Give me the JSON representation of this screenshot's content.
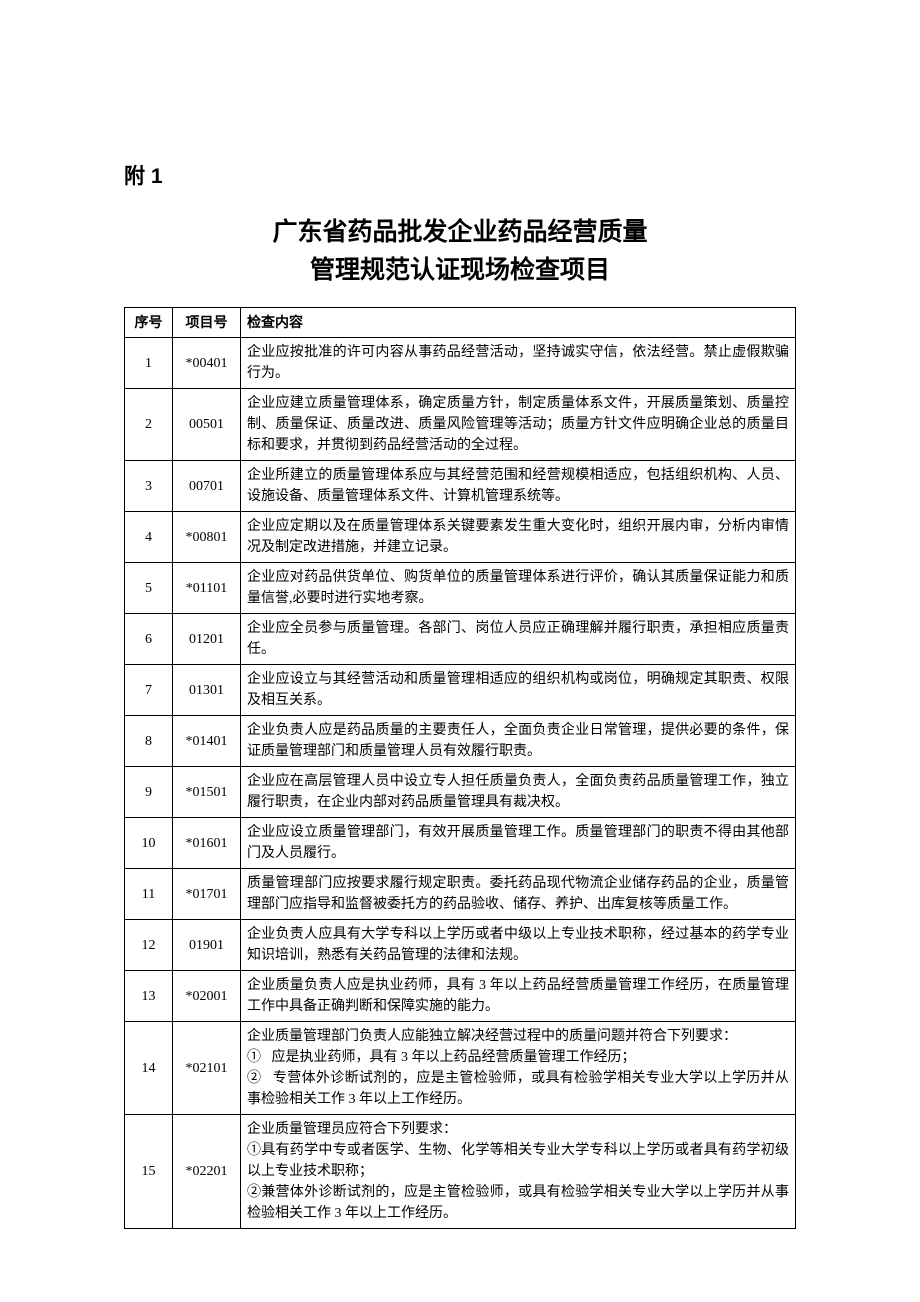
{
  "appendix_label": "附 1",
  "title_line_1": "广东省药品批发企业药品经营质量",
  "title_line_2": "管理规范认证现场检查项目",
  "table": {
    "headers": {
      "seq": "序号",
      "code": "项目号",
      "content": "检查内容"
    },
    "rows": [
      {
        "seq": "1",
        "code": "*00401",
        "content": "企业应按批准的许可内容从事药品经营活动，坚持诚实守信，依法经营。禁止虚假欺骗行为。"
      },
      {
        "seq": "2",
        "code": "00501",
        "content": "企业应建立质量管理体系，确定质量方针，制定质量体系文件，开展质量策划、质量控制、质量保证、质量改进、质量风险管理等活动；质量方针文件应明确企业总的质量目标和要求，并贯彻到药品经营活动的全过程。"
      },
      {
        "seq": "3",
        "code": "00701",
        "content": "企业所建立的质量管理体系应与其经营范围和经营规模相适应，包括组织机构、人员、设施设备、质量管理体系文件、计算机管理系统等。"
      },
      {
        "seq": "4",
        "code": "*00801",
        "content": "企业应定期以及在质量管理体系关键要素发生重大变化时，组织开展内审，分析内审情况及制定改进措施，并建立记录。"
      },
      {
        "seq": "5",
        "code": "*01101",
        "content": "企业应对药品供货单位、购货单位的质量管理体系进行评价，确认其质量保证能力和质量信誉,必要时进行实地考察。"
      },
      {
        "seq": "6",
        "code": "01201",
        "content": "企业应全员参与质量管理。各部门、岗位人员应正确理解并履行职责，承担相应质量责任。"
      },
      {
        "seq": "7",
        "code": "01301",
        "content": "企业应设立与其经营活动和质量管理相适应的组织机构或岗位，明确规定其职责、权限及相互关系。"
      },
      {
        "seq": "8",
        "code": "*01401",
        "content": "企业负责人应是药品质量的主要责任人，全面负责企业日常管理，提供必要的条件，保证质量管理部门和质量管理人员有效履行职责。"
      },
      {
        "seq": "9",
        "code": "*01501",
        "content": "企业应在高层管理人员中设立专人担任质量负责人，全面负责药品质量管理工作，独立履行职责，在企业内部对药品质量管理具有裁决权。"
      },
      {
        "seq": "10",
        "code": "*01601",
        "content": "企业应设立质量管理部门，有效开展质量管理工作。质量管理部门的职责不得由其他部门及人员履行。"
      },
      {
        "seq": "11",
        "code": "*01701",
        "content": "质量管理部门应按要求履行规定职责。委托药品现代物流企业储存药品的企业，质量管理部门应指导和监督被委托方的药品验收、储存、养护、出库复核等质量工作。"
      },
      {
        "seq": "12",
        "code": "01901",
        "content": "企业负责人应具有大学专科以上学历或者中级以上专业技术职称，经过基本的药学专业知识培训，熟悉有关药品管理的法律和法规。"
      },
      {
        "seq": "13",
        "code": "*02001",
        "content": "企业质量负责人应是执业药师，具有 3 年以上药品经营质量管理工作经历，在质量管理工作中具备正确判断和保障实施的能力。"
      },
      {
        "seq": "14",
        "code": "*02101",
        "content": "企业质量管理部门负责人应能独立解决经营过程中的质量问题并符合下列要求：\n①   应是执业药师，具有 3 年以上药品经营质量管理工作经历；\n②   专营体外诊断试剂的，应是主管检验师，或具有检验学相关专业大学以上学历并从事检验相关工作 3 年以上工作经历。"
      },
      {
        "seq": "15",
        "code": "*02201",
        "content": "企业质量管理员应符合下列要求：\n①具有药学中专或者医学、生物、化学等相关专业大学专科以上学历或者具有药学初级以上专业技术职称；\n②兼营体外诊断试剂的，应是主管检验师，或具有检验学相关专业大学以上学历并从事检验相关工作 3 年以上工作经历。"
      }
    ]
  }
}
